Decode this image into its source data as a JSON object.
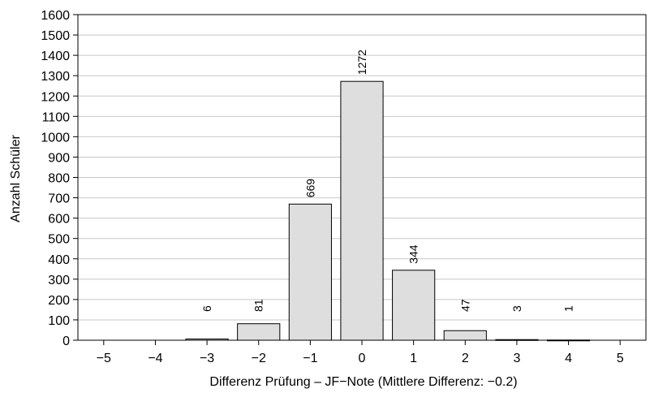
{
  "chart_data": {
    "type": "bar",
    "categories": [
      "−5",
      "−4",
      "−3",
      "−2",
      "−1",
      "0",
      "1",
      "2",
      "3",
      "4",
      "5"
    ],
    "values": [
      0,
      0,
      6,
      81,
      669,
      1272,
      344,
      47,
      3,
      1,
      0
    ],
    "data_labels": [
      "",
      "",
      "6",
      "81",
      "669",
      "1272",
      "344",
      "47",
      "3",
      "1",
      ""
    ],
    "xlabel": "Differenz Prüfung – JF−Note (Mittlere Differenz: −0.2)",
    "ylabel": "Anzahl Schüler",
    "ylim": [
      0,
      1600
    ],
    "yticks": [
      0,
      100,
      200,
      300,
      400,
      500,
      600,
      700,
      800,
      900,
      1000,
      1100,
      1200,
      1300,
      1400,
      1500,
      1600
    ],
    "grid": "horizontal",
    "bar_color": "#dedede",
    "bar_edge_color": "#000000",
    "grid_color": "#c8c8c8"
  }
}
